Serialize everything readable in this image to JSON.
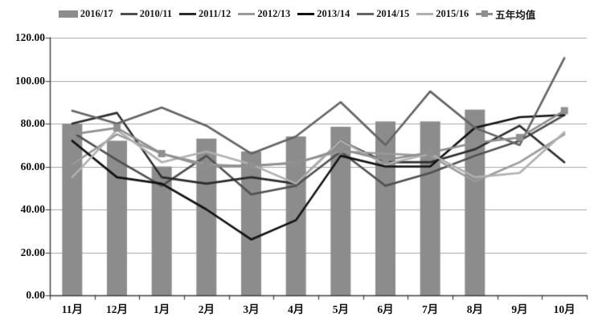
{
  "chart_data": {
    "type": "combo-bar-line",
    "title": "",
    "xlabel": "",
    "ylabel": "",
    "categories": [
      "11月",
      "12月",
      "1月",
      "2月",
      "3月",
      "4月",
      "5月",
      "6月",
      "7月",
      "8月",
      "9月",
      "10月"
    ],
    "y_axis": {
      "min": 0,
      "max": 120,
      "step": 20,
      "tick_labels": [
        "0.00",
        "20.00",
        "40.00",
        "60.00",
        "80.00",
        "100.00",
        "120.00"
      ]
    },
    "grid": true,
    "legend_position": "top",
    "bar_series": {
      "name": "2016/17",
      "color": "#8c8c8c",
      "values": [
        80,
        72,
        60,
        73,
        67,
        74,
        78.5,
        81,
        81,
        86.5,
        null,
        null
      ]
    },
    "line_series": [
      {
        "name": "2010/11",
        "color": "#4f4f4f",
        "marker": "none",
        "values": [
          76,
          63,
          51,
          65,
          47,
          51,
          67,
          51,
          57,
          65,
          72,
          84
        ]
      },
      {
        "name": "2011/12",
        "color": "#2b2b2b",
        "marker": "none",
        "values": [
          80,
          85,
          55,
          52,
          55,
          52,
          72,
          62,
          62,
          68,
          79,
          62
        ]
      },
      {
        "name": "2012/13",
        "color": "#9a9a9a",
        "marker": "none",
        "values": [
          61,
          75,
          66,
          61,
          60,
          62,
          67,
          66,
          65,
          53,
          62,
          75
        ]
      },
      {
        "name": "2013/14",
        "color": "#111111",
        "marker": "none",
        "values": [
          72,
          55,
          52,
          40,
          26,
          35,
          65,
          60,
          60,
          78,
          83,
          84
        ]
      },
      {
        "name": "2014/15",
        "color": "#636363",
        "marker": "none",
        "values": [
          86,
          80,
          87.5,
          79,
          66,
          74,
          90,
          70,
          95,
          78,
          70,
          110.5
        ]
      },
      {
        "name": "2015/16",
        "color": "#b0b0b0",
        "marker": "none",
        "values": [
          55,
          77,
          62,
          67,
          61,
          52,
          72,
          61,
          66,
          55,
          57,
          76
        ]
      },
      {
        "name": "五年均值",
        "color": "#8f8f8f",
        "marker": "square",
        "values": [
          75,
          78,
          66,
          60,
          60.5,
          61.5,
          68,
          63,
          66.5,
          71,
          73.5,
          86
        ]
      }
    ]
  },
  "colors": {
    "background": "#ffffff",
    "gridline": "#a6a6a6",
    "axis": "#3d3d3d",
    "text": "#111111"
  }
}
